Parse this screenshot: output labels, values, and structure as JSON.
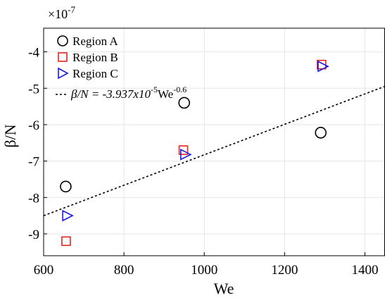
{
  "chart_data": {
    "type": "scatter",
    "title": "",
    "xlabel": "We",
    "ylabel": "β/N",
    "y_exponent_label": {
      "base": "×10",
      "exponent": "-7"
    },
    "xlim": [
      600,
      1450
    ],
    "ylim": [
      -9.6,
      -3.35
    ],
    "x_ticks": [
      600,
      800,
      1000,
      1200,
      1400
    ],
    "y_ticks": [
      -9,
      -8,
      -7,
      -6,
      -5,
      -4
    ],
    "grid": true,
    "legend": "top-left",
    "series": [
      {
        "name": "Region A",
        "marker": "circle",
        "color": "#000000",
        "x": [
          655,
          950,
          1290
        ],
        "y": [
          -7.7,
          -5.4,
          -6.22
        ]
      },
      {
        "name": "Region B",
        "marker": "square",
        "color": "#e8221e",
        "x": [
          656,
          948,
          1292
        ],
        "y": [
          -9.2,
          -6.7,
          -4.35
        ]
      },
      {
        "name": "Region C",
        "marker": "triangle-right",
        "color": "#1a1ae8",
        "x": [
          658,
          952,
          1294
        ],
        "y": [
          -8.5,
          -6.82,
          -4.4
        ]
      }
    ],
    "fit_line": {
      "legend_parts": {
        "prefix": "β/N = -3.937x10",
        "exp1": "-5",
        "mid": "We",
        "exp2": "-0.6"
      },
      "style": "dashed",
      "color": "#000000",
      "x": [
        600,
        1450
      ],
      "y": [
        -8.5,
        -4.95
      ]
    }
  }
}
